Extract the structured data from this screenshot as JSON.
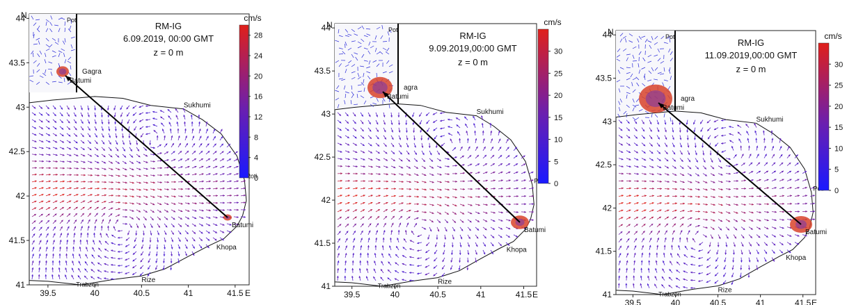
{
  "panels": [
    {
      "model": "RM-IG",
      "datetime": "6.09.2019, 00:00 GMT",
      "depth": "z = 0 m",
      "unit": "cm/s",
      "north": "N",
      "east": "E",
      "xticks": [
        "39.5",
        "40",
        "40.5",
        "41",
        "41.5"
      ],
      "yticks": [
        "44",
        "43.5",
        "43",
        "42.5",
        "42",
        "41.5",
        "41"
      ],
      "colorbar_ticks": [
        "28",
        "24",
        "20",
        "16",
        "12",
        "8",
        "4",
        "0"
      ],
      "colorbar_range": [
        0,
        30
      ],
      "places": {
        "poti_inset": "Poti",
        "gagra": "Gagra",
        "batumi_inset": "Batumi",
        "sukhumi": "Sukhumi",
        "poti": "Poti",
        "batumi": "Batumi",
        "khopa": "Khopa",
        "rize": "Rize",
        "trabzon": "Trabzon"
      }
    },
    {
      "model": "RM-IG",
      "datetime": "9.09.2019,00:00 GMT",
      "depth": "z = 0 m",
      "unit": "cm/s",
      "north": "N",
      "east": "E",
      "xticks": [
        "39.5",
        "40",
        "40.5",
        "41",
        "41.5"
      ],
      "yticks": [
        "44",
        "43.5",
        "43",
        "42.5",
        "42",
        "41.5",
        "41"
      ],
      "colorbar_ticks": [
        "30",
        "25",
        "20",
        "15",
        "10",
        "5",
        "0"
      ],
      "colorbar_range": [
        0,
        35
      ],
      "places": {
        "poti_inset": "Poti",
        "gagra": "agra",
        "batumi_inset": "Batumi",
        "sukhumi": "Sukhumi",
        "poti": "Poti",
        "batumi": "Batumi",
        "khopa": "Khopa",
        "rize": "Rize",
        "trabzon": "Trabzon"
      }
    },
    {
      "model": "RM-IG",
      "datetime": "11.09.2019,00:00 GMT",
      "depth": "z = 0 m",
      "unit": "cm/s",
      "north": "N",
      "east": "E",
      "xticks": [
        "39.5",
        "40",
        "40.5",
        "41",
        "41.5"
      ],
      "yticks": [
        "44",
        "43.5",
        "43",
        "42.5",
        "42",
        "41.5",
        "41"
      ],
      "colorbar_ticks": [
        "30",
        "25",
        "20",
        "15",
        "10",
        "5",
        "0"
      ],
      "colorbar_range": [
        0,
        35
      ],
      "places": {
        "poti_inset": "Poti",
        "gagra": "agra",
        "batumi_inset": "Batumi",
        "sukhumi": "Sukhumi",
        "poti": "Poti",
        "batumi": "Batumi",
        "khopa": "Khopa",
        "rize": "Rize",
        "trabzon": "Trabzon"
      }
    }
  ],
  "colors": {
    "scale_low": "#1a1aff",
    "scale_mid": "#7a1fa8",
    "scale_high": "#e0201a",
    "coast": "#111111",
    "land": "#ffffff",
    "spill": "#d8432a",
    "transect": "#000000"
  }
}
